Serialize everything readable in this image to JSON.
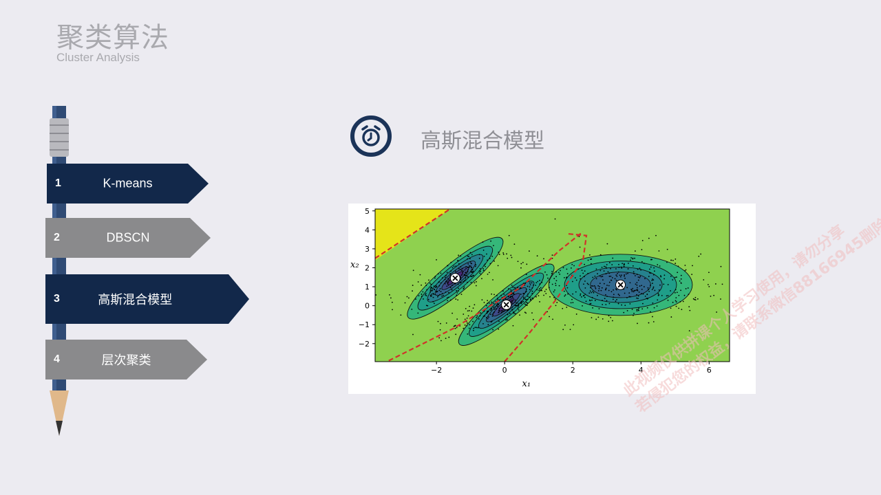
{
  "header": {
    "title": "聚类算法",
    "subtitle": "Cluster Analysis"
  },
  "menu": [
    {
      "num": "1",
      "label": "K-means",
      "active": true
    },
    {
      "num": "2",
      "label": "DBSCN",
      "active": false
    },
    {
      "num": "3",
      "label": "高斯混合模型",
      "active": true
    },
    {
      "num": "4",
      "label": "层次聚类",
      "active": false
    }
  ],
  "section": {
    "title": "高斯混合模型",
    "icon": "alarm-clock-icon"
  },
  "colors": {
    "navy": "#12284a",
    "gray": "#8a8a8c",
    "boundary": "#d0322a"
  },
  "chart_data": {
    "type": "contour",
    "title": "",
    "xlabel": "x₁",
    "ylabel": "x₂",
    "xlim": [
      -3.8,
      6.6
    ],
    "ylim": [
      -2.95,
      5.1
    ],
    "xticks": [
      -2,
      0,
      2,
      4,
      6
    ],
    "yticks": [
      -2,
      -1,
      0,
      1,
      2,
      3,
      4,
      5
    ],
    "components": [
      {
        "center": [
          -1.45,
          1.45
        ],
        "marker": "x-circle"
      },
      {
        "center": [
          0.05,
          0.05
        ],
        "marker": "x-circle"
      },
      {
        "center": [
          3.4,
          1.1
        ],
        "marker": "x-circle"
      }
    ],
    "decision_boundary": {
      "style": "dashed",
      "color": "#d0322a"
    },
    "grid": false,
    "legend": "none"
  },
  "watermark": {
    "line1": "此视频仅供拼课个人学习使用，请勿分享",
    "line2": "若侵犯您的权益，请联系微信88166945删除"
  }
}
